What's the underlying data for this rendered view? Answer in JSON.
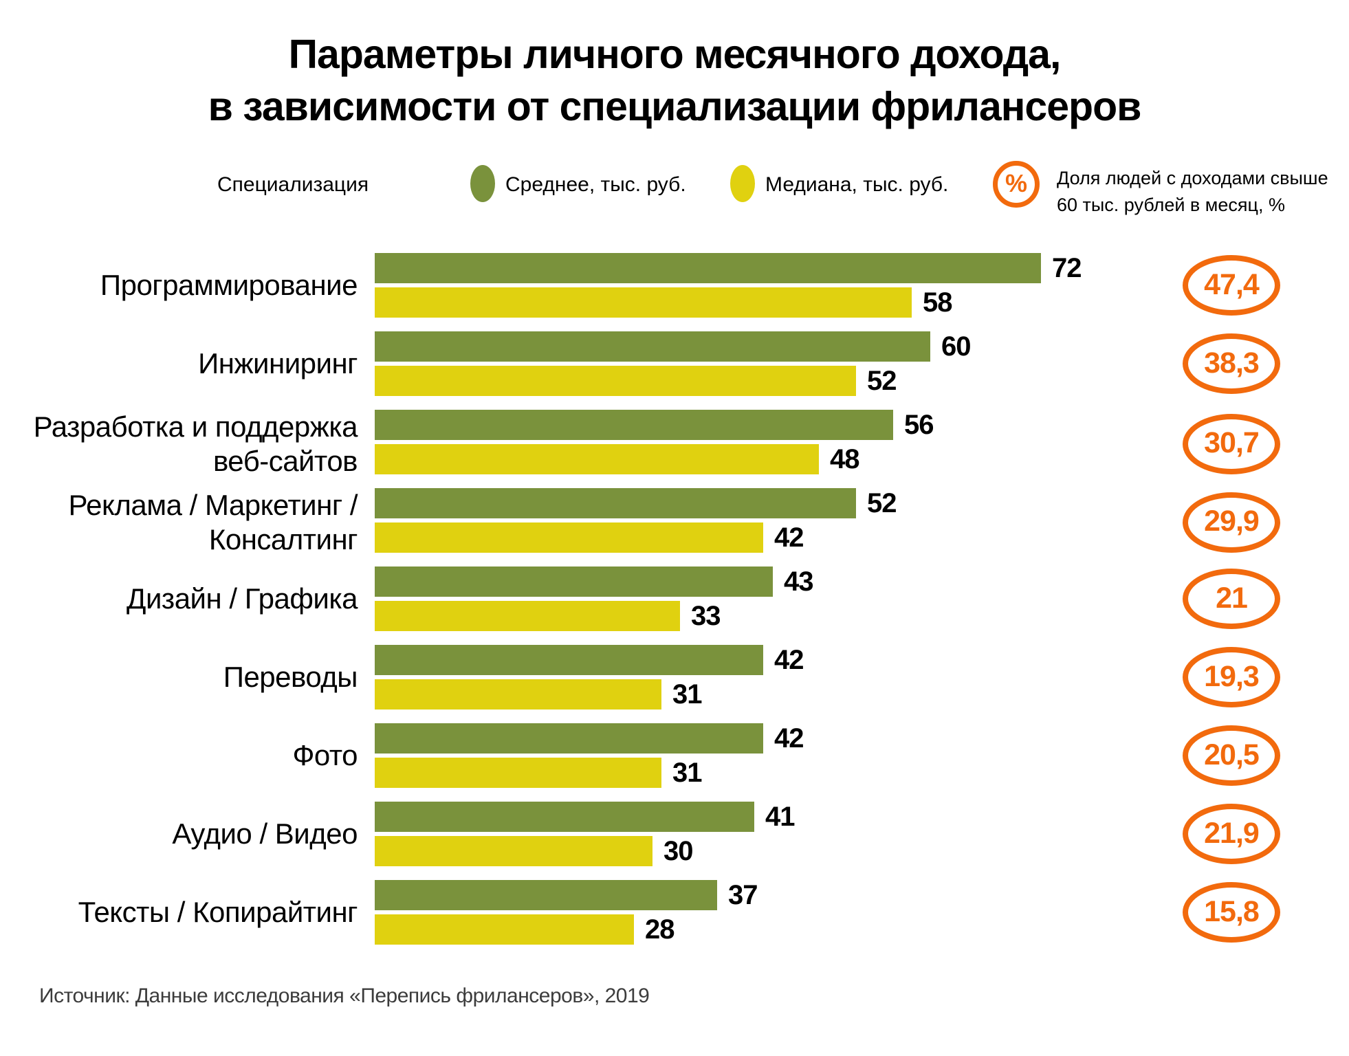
{
  "title": {
    "line1": "Параметры личного месячного дохода,",
    "line2": "в зависимости от специализации фрилансеров"
  },
  "legend": {
    "axis_label": "Специализация",
    "mean_label": "Среднее, тыс. руб.",
    "median_label": "Медиана, тыс. руб.",
    "percent_symbol": "%",
    "share_label_line1": "Доля людей с доходами свыше",
    "share_label_line2": "60 тыс. рублей в месяц, %"
  },
  "colors": {
    "mean": "#7A923C",
    "median": "#E0D110",
    "accent": "#F26A0D"
  },
  "source": "Источник: Данные исследования «Перепись фрилансеров», 2019",
  "chart_data": {
    "type": "bar",
    "orientation": "horizontal",
    "title": "Параметры личного месячного дохода, в зависимости от специализации фрилансеров",
    "xlabel": "тыс. руб.",
    "ylabel": "Специализация",
    "xlim": [
      0,
      72
    ],
    "grid": false,
    "legend_position": "top",
    "categories": [
      "Программирование",
      "Инжиниринг",
      "Разработка и поддержка\nвеб-сайтов",
      "Реклама / Маркетинг /\nКонсалтинг",
      "Дизайн / Графика",
      "Переводы",
      "Фото",
      "Аудио / Видео",
      "Тексты / Копирайтинг"
    ],
    "series": [
      {
        "name": "Среднее, тыс. руб.",
        "color_key": "mean",
        "values": [
          72,
          60,
          56,
          52,
          43,
          42,
          42,
          41,
          37
        ]
      },
      {
        "name": "Медиана, тыс. руб.",
        "color_key": "median",
        "values": [
          58,
          52,
          48,
          42,
          33,
          31,
          31,
          30,
          28
        ]
      }
    ],
    "share_over_60k_pct": {
      "name": "Доля людей с доходами свыше 60 тыс. рублей в месяц, %",
      "values": [
        "47,4",
        "38,3",
        "30,7",
        "29,9",
        "21",
        "19,3",
        "20,5",
        "21,9",
        "15,8"
      ]
    }
  }
}
